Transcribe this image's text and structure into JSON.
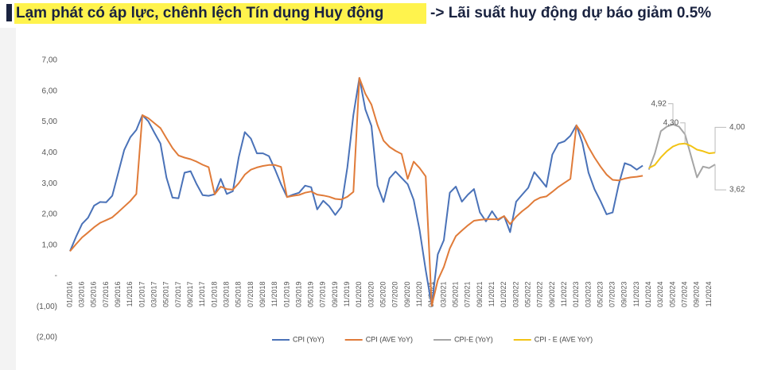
{
  "chart_data": {
    "type": "line",
    "title_highlight": "Lạm phát có áp lực, chênh lệch Tín dụng Huy động",
    "title_rest": "-> Lãi suất huy động dự báo giảm 0.5%",
    "categories": [
      "01/2016",
      null,
      "03/2016",
      null,
      "05/2016",
      null,
      "07/2016",
      null,
      "09/2016",
      null,
      "11/2016",
      null,
      "01/2017",
      null,
      "03/2017",
      null,
      "05/2017",
      null,
      "07/2017",
      null,
      "09/2017",
      null,
      "11/2017",
      null,
      "01/2018",
      null,
      "03/2018",
      null,
      "05/2018",
      null,
      "07/2018",
      null,
      "09/2018",
      null,
      "11/2018",
      null,
      "01/2019",
      null,
      "03/2019",
      null,
      "05/2019",
      null,
      "07/2019",
      null,
      "09/2019",
      null,
      "11/2019",
      null,
      "01/2020",
      null,
      "03/2020",
      null,
      "05/2020",
      null,
      "07/2020",
      null,
      "09/2020",
      null,
      "11/2020",
      null,
      "01/2021",
      null,
      "03/2021",
      null,
      "05/2021",
      null,
      "07/2021",
      null,
      "09/2021",
      null,
      "11/2021",
      null,
      "01/2022",
      null,
      "03/2022",
      null,
      "05/2022",
      null,
      "07/2022",
      null,
      "09/2022",
      null,
      "11/2022",
      null,
      "01/2023",
      null,
      "03/2023",
      null,
      "05/2023",
      null,
      "07/2023",
      null,
      "09/2023",
      null,
      "11/2023",
      null,
      "01/2024",
      null,
      "03/2024",
      null,
      "05/2024",
      null,
      "07/2024",
      null,
      "09/2024",
      null,
      "11/2024",
      null
    ],
    "series": [
      {
        "name": "CPI (YoY)",
        "color": "#4a72b8",
        "values": [
          0.8,
          1.27,
          1.69,
          1.89,
          2.28,
          2.4,
          2.39,
          2.6,
          3.34,
          4.09,
          4.5,
          4.74,
          5.22,
          5.02,
          4.65,
          4.3,
          3.19,
          2.54,
          2.52,
          3.35,
          3.4,
          2.98,
          2.62,
          2.6,
          2.65,
          3.15,
          2.66,
          2.75,
          3.86,
          4.67,
          4.46,
          3.98,
          3.98,
          3.89,
          3.46,
          2.98,
          2.56,
          2.64,
          2.7,
          2.93,
          2.88,
          2.16,
          2.44,
          2.26,
          1.98,
          2.24,
          3.52,
          5.23,
          6.43,
          5.4,
          4.87,
          2.93,
          2.4,
          3.17,
          3.39,
          3.18,
          2.98,
          2.47,
          1.48,
          0.19,
          -0.97,
          0.7,
          1.16,
          2.7,
          2.9,
          2.41,
          2.64,
          2.82,
          2.06,
          1.77,
          2.1,
          1.81,
          1.94,
          1.42,
          2.41,
          2.64,
          2.86,
          3.37,
          3.14,
          2.89,
          3.94,
          4.3,
          4.37,
          4.55,
          4.89,
          4.31,
          3.35,
          2.81,
          2.43,
          2.0,
          2.06,
          2.96,
          3.66,
          3.59,
          3.45,
          3.58,
          null,
          null,
          null,
          null,
          null,
          null,
          null,
          null,
          null,
          null,
          null,
          null
        ]
      },
      {
        "name": "CPI (AVE YoY)",
        "color": "#e07b39",
        "values": [
          0.8,
          1.03,
          1.25,
          1.41,
          1.58,
          1.72,
          1.81,
          1.9,
          2.07,
          2.25,
          2.43,
          2.66,
          5.22,
          5.12,
          4.96,
          4.8,
          4.47,
          4.15,
          3.91,
          3.84,
          3.79,
          3.71,
          3.61,
          3.53,
          2.65,
          2.9,
          2.82,
          2.8,
          3.01,
          3.29,
          3.45,
          3.52,
          3.57,
          3.6,
          3.6,
          3.54,
          2.56,
          2.6,
          2.63,
          2.7,
          2.74,
          2.64,
          2.61,
          2.57,
          2.5,
          2.48,
          2.57,
          2.73,
          6.43,
          5.91,
          5.56,
          4.9,
          4.39,
          4.19,
          4.06,
          3.96,
          3.15,
          3.71,
          3.5,
          3.23,
          -0.97,
          -0.14,
          0.29,
          0.89,
          1.29,
          1.47,
          1.64,
          1.79,
          1.82,
          1.84,
          1.84,
          1.84,
          1.94,
          1.68,
          1.92,
          2.1,
          2.25,
          2.44,
          2.54,
          2.58,
          2.73,
          2.89,
          3.02,
          3.15,
          4.89,
          4.6,
          4.18,
          3.84,
          3.55,
          3.29,
          3.12,
          3.1,
          3.16,
          3.2,
          3.22,
          3.25,
          null,
          null,
          null,
          null,
          null,
          null,
          null,
          null,
          null,
          null,
          null,
          null
        ]
      },
      {
        "name": "CPI-E (YoY)",
        "color": "#a5a5a5",
        "values": [
          null,
          null,
          null,
          null,
          null,
          null,
          null,
          null,
          null,
          null,
          null,
          null,
          null,
          null,
          null,
          null,
          null,
          null,
          null,
          null,
          null,
          null,
          null,
          null,
          null,
          null,
          null,
          null,
          null,
          null,
          null,
          null,
          null,
          null,
          null,
          null,
          null,
          null,
          null,
          null,
          null,
          null,
          null,
          null,
          null,
          null,
          null,
          null,
          null,
          null,
          null,
          null,
          null,
          null,
          null,
          null,
          null,
          null,
          null,
          null,
          null,
          null,
          null,
          null,
          null,
          null,
          null,
          null,
          null,
          null,
          null,
          null,
          null,
          null,
          null,
          null,
          null,
          null,
          null,
          null,
          null,
          null,
          null,
          null,
          null,
          null,
          null,
          null,
          null,
          null,
          null,
          null,
          null,
          null,
          null,
          null,
          3.45,
          3.98,
          4.7,
          4.85,
          4.92,
          4.85,
          4.6,
          3.9,
          3.2,
          3.55,
          3.5,
          3.62
        ],
        "value_labels": [
          null,
          null,
          null,
          null,
          null,
          null,
          null,
          null,
          null,
          null,
          null,
          null,
          null,
          null,
          null,
          null,
          null,
          null,
          null,
          null,
          null,
          null,
          null,
          null,
          null,
          null,
          null,
          null,
          null,
          null,
          null,
          null,
          null,
          null,
          null,
          null,
          null,
          null,
          null,
          null,
          null,
          null,
          null,
          null,
          null,
          null,
          null,
          null,
          null,
          null,
          null,
          null,
          null,
          null,
          null,
          null,
          null,
          null,
          null,
          null,
          null,
          null,
          null,
          null,
          null,
          null,
          null,
          null,
          null,
          null,
          null,
          null,
          null,
          null,
          null,
          null,
          null,
          null,
          null,
          null,
          null,
          null,
          null,
          null,
          null,
          null,
          null,
          null,
          null,
          null,
          null,
          null,
          null,
          null,
          null,
          null,
          null,
          null,
          null,
          null,
          "4,92",
          null,
          null,
          null,
          null,
          null,
          null,
          "3,62"
        ]
      },
      {
        "name": "CPI - E (AVE YoY)",
        "color": "#f2c314",
        "values": [
          null,
          null,
          null,
          null,
          null,
          null,
          null,
          null,
          null,
          null,
          null,
          null,
          null,
          null,
          null,
          null,
          null,
          null,
          null,
          null,
          null,
          null,
          null,
          null,
          null,
          null,
          null,
          null,
          null,
          null,
          null,
          null,
          null,
          null,
          null,
          null,
          null,
          null,
          null,
          null,
          null,
          null,
          null,
          null,
          null,
          null,
          null,
          null,
          null,
          null,
          null,
          null,
          null,
          null,
          null,
          null,
          null,
          null,
          null,
          null,
          null,
          null,
          null,
          null,
          null,
          null,
          null,
          null,
          null,
          null,
          null,
          null,
          null,
          null,
          null,
          null,
          null,
          null,
          null,
          null,
          null,
          null,
          null,
          null,
          null,
          null,
          null,
          null,
          null,
          null,
          null,
          null,
          null,
          null,
          null,
          null,
          3.5,
          3.6,
          3.85,
          4.05,
          4.2,
          4.28,
          4.3,
          4.22,
          4.1,
          4.05,
          3.98,
          4.0
        ],
        "value_labels": [
          null,
          null,
          null,
          null,
          null,
          null,
          null,
          null,
          null,
          null,
          null,
          null,
          null,
          null,
          null,
          null,
          null,
          null,
          null,
          null,
          null,
          null,
          null,
          null,
          null,
          null,
          null,
          null,
          null,
          null,
          null,
          null,
          null,
          null,
          null,
          null,
          null,
          null,
          null,
          null,
          null,
          null,
          null,
          null,
          null,
          null,
          null,
          null,
          null,
          null,
          null,
          null,
          null,
          null,
          null,
          null,
          null,
          null,
          null,
          null,
          null,
          null,
          null,
          null,
          null,
          null,
          null,
          null,
          null,
          null,
          null,
          null,
          null,
          null,
          null,
          null,
          null,
          null,
          null,
          null,
          null,
          null,
          null,
          null,
          null,
          null,
          null,
          null,
          null,
          null,
          null,
          null,
          null,
          null,
          null,
          null,
          null,
          null,
          null,
          null,
          null,
          null,
          "4,30",
          null,
          null,
          null,
          null,
          "4,00"
        ]
      }
    ],
    "ylim": [
      -2,
      7
    ],
    "yticks": [
      {
        "value": -2,
        "label": "(2,00)"
      },
      {
        "value": -1,
        "label": "(1,00)"
      },
      {
        "value": 0,
        "label": "-"
      },
      {
        "value": 1,
        "label": "1,00"
      },
      {
        "value": 2,
        "label": "2,00"
      },
      {
        "value": 3,
        "label": "3,00"
      },
      {
        "value": 4,
        "label": "4,00"
      },
      {
        "value": 5,
        "label": "5,00"
      },
      {
        "value": 6,
        "label": "6,00"
      },
      {
        "value": 7,
        "label": "7,00"
      }
    ],
    "grid": false
  }
}
